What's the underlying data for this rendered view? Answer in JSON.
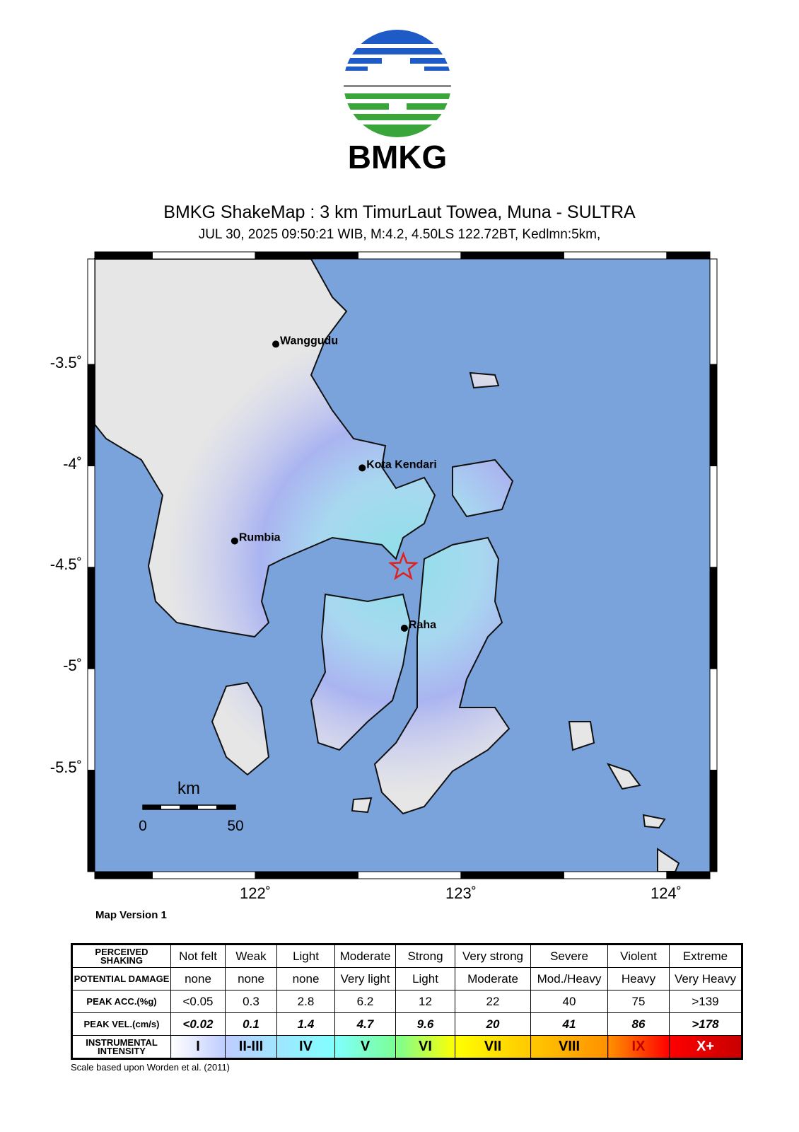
{
  "logo": {
    "text": "BMKG",
    "colors": {
      "blue": "#1e5bc6",
      "green": "#3aa53a",
      "gray": "#888888"
    }
  },
  "header": {
    "title": "BMKG ShakeMap : 3 km TimurLaut Towea, Muna - SULTRA",
    "subtitle": "JUL 30, 2025 09:50:21 WIB, M:4.2, 4.50LS 122.72BT, Kedlmn:5km,"
  },
  "map": {
    "extent": {
      "lon": [
        121.22,
        124.21
      ],
      "lat": [
        -6.0,
        -2.98
      ]
    },
    "lon_ticks": [
      "122˚",
      "123˚",
      "124˚"
    ],
    "lat_ticks": [
      "-3.5˚",
      "-4˚",
      "-4.5˚",
      "-5˚",
      "-5.5˚"
    ],
    "colors": {
      "sea": "#7aa3dc",
      "land": "#e6e6e6",
      "intensity_II_III": "#b8c0f5",
      "intensity_IV": "#9ee6ee",
      "epicenter": "#e0211d"
    },
    "epicenter": {
      "lon": 122.72,
      "lat": -4.5,
      "icon": "star-icon"
    },
    "cities": [
      {
        "name": "Wanggudu",
        "lon": 122.1,
        "lat": -3.4
      },
      {
        "name": "Kota Kendari",
        "lon": 122.52,
        "lat": -4.01
      },
      {
        "name": "Rumbia",
        "lon": 121.9,
        "lat": -4.37
      },
      {
        "name": "Raha",
        "lon": 122.725,
        "lat": -4.8
      }
    ],
    "scale_bar": {
      "unit": "km",
      "labels": [
        "0",
        "50"
      ]
    },
    "version": "Map Version 1"
  },
  "legend": {
    "row_headers": [
      "PERCEIVED SHAKING",
      "POTENTIAL DAMAGE",
      "PEAK ACC.(%g)",
      "PEAK VEL.(cm/s)",
      "INSTRUMENTAL INTENSITY"
    ],
    "shaking": [
      "Not felt",
      "Weak",
      "Light",
      "Moderate",
      "Strong",
      "Very strong",
      "Severe",
      "Violent",
      "Extreme"
    ],
    "damage": [
      "none",
      "none",
      "none",
      "Very light",
      "Light",
      "Moderate",
      "Mod./Heavy",
      "Heavy",
      "Very Heavy"
    ],
    "acc": [
      "<0.05",
      "0.3",
      "2.8",
      "6.2",
      "12",
      "22",
      "40",
      "75",
      ">139"
    ],
    "vel": [
      "<0.02",
      "0.1",
      "1.4",
      "4.7",
      "9.6",
      "20",
      "41",
      "86",
      ">178"
    ],
    "intensity": [
      "I",
      "II-III",
      "IV",
      "V",
      "VI",
      "VII",
      "VIII",
      "IX",
      "X+"
    ],
    "intensity_colors": [
      "#ffffff",
      "#bfccff",
      "#a0e6ff",
      "#80ffff",
      "#7aff93",
      "#ffff00",
      "#ffc800",
      "#ff9100",
      "#ff0000",
      "#c80000"
    ],
    "credit": "Scale based upon Worden et al. (2011)"
  }
}
